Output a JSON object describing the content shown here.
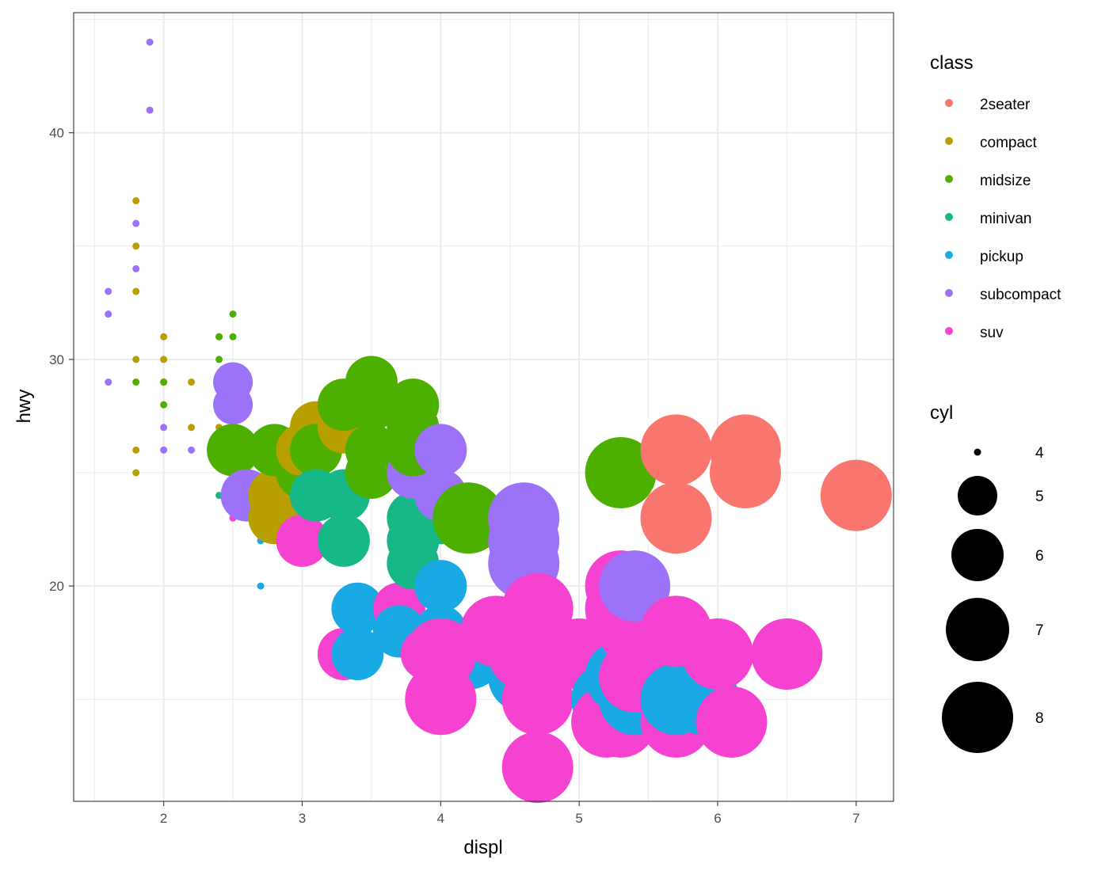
{
  "chart_data": {
    "type": "scatter",
    "xlabel": "displ",
    "ylabel": "hwy",
    "xlim": [
      1.35,
      7.27
    ],
    "ylim": [
      10.5,
      45.3
    ],
    "x_ticks": [
      2,
      3,
      4,
      5,
      6,
      7
    ],
    "y_ticks": [
      20,
      30,
      40
    ],
    "x_tick_labels": [
      "2",
      "3",
      "4",
      "5",
      "6",
      "7"
    ],
    "y_tick_labels": [
      "20",
      "30",
      "40"
    ],
    "grid": true,
    "color_legend": {
      "title": "class",
      "placement": "right",
      "entries": [
        {
          "label": "2seater",
          "color": "#F8766D"
        },
        {
          "label": "compact",
          "color": "#B79F00"
        },
        {
          "label": "midsize",
          "color": "#4DAF00"
        },
        {
          "label": "minivan",
          "color": "#16B887"
        },
        {
          "label": "pickup",
          "color": "#19A9E5"
        },
        {
          "label": "subcompact",
          "color": "#9B72F8"
        },
        {
          "label": "suv",
          "color": "#F542D0"
        }
      ]
    },
    "size_legend": {
      "title": "cyl",
      "entries": [
        {
          "label": "4",
          "value": 4
        },
        {
          "label": "5",
          "value": 5
        },
        {
          "label": "6",
          "value": 6
        },
        {
          "label": "7",
          "value": 7
        },
        {
          "label": "8",
          "value": 8
        }
      ]
    },
    "points": [
      {
        "x": 1.6,
        "y": 29,
        "class": "subcompact",
        "cyl": 4
      },
      {
        "x": 1.6,
        "y": 32,
        "class": "subcompact",
        "cyl": 4
      },
      {
        "x": 1.6,
        "y": 33,
        "class": "subcompact",
        "cyl": 4
      },
      {
        "x": 1.8,
        "y": 25,
        "class": "compact",
        "cyl": 4
      },
      {
        "x": 1.8,
        "y": 26,
        "class": "compact",
        "cyl": 4
      },
      {
        "x": 1.8,
        "y": 29,
        "class": "midsize",
        "cyl": 4
      },
      {
        "x": 1.8,
        "y": 30,
        "class": "compact",
        "cyl": 4
      },
      {
        "x": 1.8,
        "y": 33,
        "class": "compact",
        "cyl": 4
      },
      {
        "x": 1.8,
        "y": 34,
        "class": "subcompact",
        "cyl": 4
      },
      {
        "x": 1.8,
        "y": 35,
        "class": "compact",
        "cyl": 4
      },
      {
        "x": 1.8,
        "y": 36,
        "class": "subcompact",
        "cyl": 4
      },
      {
        "x": 1.8,
        "y": 37,
        "class": "compact",
        "cyl": 4
      },
      {
        "x": 1.9,
        "y": 41,
        "class": "subcompact",
        "cyl": 4
      },
      {
        "x": 1.9,
        "y": 44,
        "class": "subcompact",
        "cyl": 4
      },
      {
        "x": 2.0,
        "y": 26,
        "class": "subcompact",
        "cyl": 4
      },
      {
        "x": 2.0,
        "y": 27,
        "class": "subcompact",
        "cyl": 4
      },
      {
        "x": 2.0,
        "y": 28,
        "class": "midsize",
        "cyl": 4
      },
      {
        "x": 2.0,
        "y": 29,
        "class": "compact",
        "cyl": 4
      },
      {
        "x": 2.0,
        "y": 29,
        "class": "midsize",
        "cyl": 4
      },
      {
        "x": 2.0,
        "y": 30,
        "class": "compact",
        "cyl": 4
      },
      {
        "x": 2.0,
        "y": 31,
        "class": "compact",
        "cyl": 4
      },
      {
        "x": 2.2,
        "y": 26,
        "class": "subcompact",
        "cyl": 4
      },
      {
        "x": 2.2,
        "y": 27,
        "class": "compact",
        "cyl": 4
      },
      {
        "x": 2.2,
        "y": 29,
        "class": "compact",
        "cyl": 4
      },
      {
        "x": 2.4,
        "y": 24,
        "class": "minivan",
        "cyl": 4
      },
      {
        "x": 2.4,
        "y": 27,
        "class": "compact",
        "cyl": 4
      },
      {
        "x": 2.4,
        "y": 30,
        "class": "midsize",
        "cyl": 4
      },
      {
        "x": 2.4,
        "y": 31,
        "class": "compact",
        "cyl": 4
      },
      {
        "x": 2.4,
        "y": 31,
        "class": "midsize",
        "cyl": 4
      },
      {
        "x": 2.5,
        "y": 23,
        "class": "suv",
        "cyl": 4
      },
      {
        "x": 2.5,
        "y": 24,
        "class": "suv",
        "cyl": 4
      },
      {
        "x": 2.5,
        "y": 25,
        "class": "compact",
        "cyl": 4
      },
      {
        "x": 2.5,
        "y": 26,
        "class": "subcompact",
        "cyl": 4
      },
      {
        "x": 2.5,
        "y": 27,
        "class": "compact",
        "cyl": 4
      },
      {
        "x": 2.5,
        "y": 29,
        "class": "midsize",
        "cyl": 4
      },
      {
        "x": 2.5,
        "y": 31,
        "class": "midsize",
        "cyl": 4
      },
      {
        "x": 2.5,
        "y": 32,
        "class": "midsize",
        "cyl": 4
      },
      {
        "x": 2.7,
        "y": 20,
        "class": "pickup",
        "cyl": 4
      },
      {
        "x": 2.7,
        "y": 22,
        "class": "pickup",
        "cyl": 4
      },
      {
        "x": 2.5,
        "y": 28,
        "class": "subcompact",
        "cyl": 5
      },
      {
        "x": 2.5,
        "y": 29,
        "class": "subcompact",
        "cyl": 5
      },
      {
        "x": 2.5,
        "y": 26,
        "class": "midsize",
        "cyl": 6
      },
      {
        "x": 2.6,
        "y": 24,
        "class": "subcompact",
        "cyl": 6
      },
      {
        "x": 2.8,
        "y": 23,
        "class": "compact",
        "cyl": 6
      },
      {
        "x": 2.8,
        "y": 24,
        "class": "compact",
        "cyl": 6
      },
      {
        "x": 2.8,
        "y": 26,
        "class": "midsize",
        "cyl": 6
      },
      {
        "x": 3.0,
        "y": 22,
        "class": "suv",
        "cyl": 6
      },
      {
        "x": 3.0,
        "y": 25,
        "class": "midsize",
        "cyl": 6
      },
      {
        "x": 3.0,
        "y": 26,
        "class": "compact",
        "cyl": 6
      },
      {
        "x": 3.1,
        "y": 27,
        "class": "compact",
        "cyl": 6
      },
      {
        "x": 3.1,
        "y": 26,
        "class": "midsize",
        "cyl": 6
      },
      {
        "x": 3.1,
        "y": 24,
        "class": "minivan",
        "cyl": 6
      },
      {
        "x": 3.3,
        "y": 17,
        "class": "suv",
        "cyl": 6
      },
      {
        "x": 3.3,
        "y": 22,
        "class": "minivan",
        "cyl": 6
      },
      {
        "x": 3.3,
        "y": 24,
        "class": "minivan",
        "cyl": 6
      },
      {
        "x": 3.3,
        "y": 27,
        "class": "compact",
        "cyl": 6
      },
      {
        "x": 3.3,
        "y": 28,
        "class": "midsize",
        "cyl": 6
      },
      {
        "x": 3.4,
        "y": 17,
        "class": "pickup",
        "cyl": 6
      },
      {
        "x": 3.4,
        "y": 19,
        "class": "pickup",
        "cyl": 6
      },
      {
        "x": 3.5,
        "y": 25,
        "class": "midsize",
        "cyl": 6
      },
      {
        "x": 3.5,
        "y": 26,
        "class": "midsize",
        "cyl": 6
      },
      {
        "x": 3.5,
        "y": 28,
        "class": "midsize",
        "cyl": 6
      },
      {
        "x": 3.5,
        "y": 29,
        "class": "midsize",
        "cyl": 6
      },
      {
        "x": 3.7,
        "y": 19,
        "class": "suv",
        "cyl": 6
      },
      {
        "x": 3.7,
        "y": 18,
        "class": "pickup",
        "cyl": 6
      },
      {
        "x": 3.8,
        "y": 21,
        "class": "minivan",
        "cyl": 6
      },
      {
        "x": 3.8,
        "y": 22,
        "class": "minivan",
        "cyl": 6
      },
      {
        "x": 3.8,
        "y": 23,
        "class": "minivan",
        "cyl": 6
      },
      {
        "x": 3.8,
        "y": 25,
        "class": "subcompact",
        "cyl": 6
      },
      {
        "x": 3.8,
        "y": 26,
        "class": "midsize",
        "cyl": 6
      },
      {
        "x": 3.8,
        "y": 27,
        "class": "midsize",
        "cyl": 6
      },
      {
        "x": 3.8,
        "y": 28,
        "class": "midsize",
        "cyl": 6
      },
      {
        "x": 3.9,
        "y": 17,
        "class": "suv",
        "cyl": 6
      },
      {
        "x": 4.0,
        "y": 17,
        "class": "suv",
        "cyl": 6
      },
      {
        "x": 4.0,
        "y": 18,
        "class": "pickup",
        "cyl": 6
      },
      {
        "x": 4.0,
        "y": 20,
        "class": "pickup",
        "cyl": 6
      },
      {
        "x": 4.0,
        "y": 23,
        "class": "minivan",
        "cyl": 6
      },
      {
        "x": 4.0,
        "y": 24,
        "class": "subcompact",
        "cyl": 6
      },
      {
        "x": 4.0,
        "y": 26,
        "class": "subcompact",
        "cyl": 6
      },
      {
        "x": 4.2,
        "y": 17,
        "class": "pickup",
        "cyl": 8
      },
      {
        "x": 4.2,
        "y": 23,
        "class": "midsize",
        "cyl": 8
      },
      {
        "x": 4.4,
        "y": 18,
        "class": "suv",
        "cyl": 8
      },
      {
        "x": 4.6,
        "y": 16,
        "class": "pickup",
        "cyl": 8
      },
      {
        "x": 4.6,
        "y": 17,
        "class": "suv",
        "cyl": 8
      },
      {
        "x": 4.6,
        "y": 18,
        "class": "suv",
        "cyl": 8
      },
      {
        "x": 4.6,
        "y": 21,
        "class": "subcompact",
        "cyl": 8
      },
      {
        "x": 4.6,
        "y": 22,
        "class": "subcompact",
        "cyl": 8
      },
      {
        "x": 4.6,
        "y": 23,
        "class": "subcompact",
        "cyl": 8
      },
      {
        "x": 4.7,
        "y": 12,
        "class": "suv",
        "cyl": 8
      },
      {
        "x": 4.7,
        "y": 15,
        "class": "suv",
        "cyl": 8
      },
      {
        "x": 4.7,
        "y": 17,
        "class": "suv",
        "cyl": 8
      },
      {
        "x": 4.7,
        "y": 18,
        "class": "suv",
        "cyl": 8
      },
      {
        "x": 4.7,
        "y": 19,
        "class": "suv",
        "cyl": 8
      },
      {
        "x": 4.0,
        "y": 15,
        "class": "suv",
        "cyl": 8
      },
      {
        "x": 4.0,
        "y": 17,
        "class": "suv",
        "cyl": 8
      },
      {
        "x": 5.0,
        "y": 17,
        "class": "suv",
        "cyl": 8
      },
      {
        "x": 5.2,
        "y": 15,
        "class": "pickup",
        "cyl": 8
      },
      {
        "x": 5.2,
        "y": 14,
        "class": "suv",
        "cyl": 8
      },
      {
        "x": 5.3,
        "y": 14,
        "class": "suv",
        "cyl": 8
      },
      {
        "x": 5.3,
        "y": 16,
        "class": "pickup",
        "cyl": 8
      },
      {
        "x": 5.3,
        "y": 19,
        "class": "suv",
        "cyl": 8
      },
      {
        "x": 5.3,
        "y": 20,
        "class": "suv",
        "cyl": 8
      },
      {
        "x": 5.3,
        "y": 25,
        "class": "midsize",
        "cyl": 8
      },
      {
        "x": 5.4,
        "y": 15,
        "class": "pickup",
        "cyl": 8
      },
      {
        "x": 5.4,
        "y": 16,
        "class": "suv",
        "cyl": 8
      },
      {
        "x": 5.4,
        "y": 18,
        "class": "suv",
        "cyl": 8
      },
      {
        "x": 5.4,
        "y": 20,
        "class": "subcompact",
        "cyl": 8
      },
      {
        "x": 5.7,
        "y": 14,
        "class": "suv",
        "cyl": 8
      },
      {
        "x": 5.7,
        "y": 15,
        "class": "pickup",
        "cyl": 8
      },
      {
        "x": 5.7,
        "y": 18,
        "class": "suv",
        "cyl": 8
      },
      {
        "x": 5.7,
        "y": 23,
        "class": "2seater",
        "cyl": 8
      },
      {
        "x": 5.7,
        "y": 26,
        "class": "2seater",
        "cyl": 8
      },
      {
        "x": 5.9,
        "y": 15,
        "class": "pickup",
        "cyl": 8
      },
      {
        "x": 6.0,
        "y": 17,
        "class": "suv",
        "cyl": 8
      },
      {
        "x": 6.1,
        "y": 14,
        "class": "suv",
        "cyl": 8
      },
      {
        "x": 6.2,
        "y": 25,
        "class": "2seater",
        "cyl": 8
      },
      {
        "x": 6.2,
        "y": 26,
        "class": "2seater",
        "cyl": 8
      },
      {
        "x": 6.5,
        "y": 17,
        "class": "suv",
        "cyl": 8
      },
      {
        "x": 7.0,
        "y": 24,
        "class": "2seater",
        "cyl": 8
      }
    ]
  }
}
